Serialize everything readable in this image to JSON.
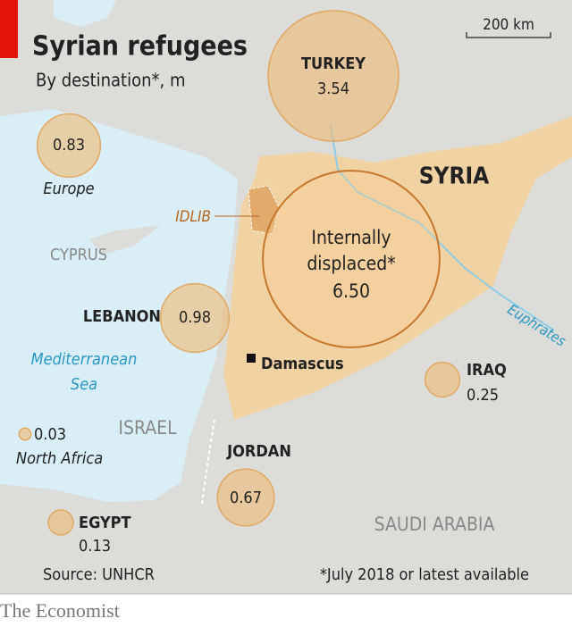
{
  "header": {
    "title": "Syrian refugees",
    "subtitle": "By destination*, m"
  },
  "scale_label": "200 km",
  "bubbles": [
    {
      "name": "TURKEY",
      "value": 3.54
    },
    {
      "name": [
        "Internally",
        "displaced*"
      ],
      "value": 6.5,
      "value_label": "6.50"
    },
    {
      "name": "Europe",
      "value": 0.83
    },
    {
      "name": "LEBANON",
      "value": 0.98
    },
    {
      "name": "IRAQ",
      "value": 0.25
    },
    {
      "name": "JORDAN",
      "value": 0.67
    },
    {
      "name": "EGYPT",
      "value": 0.13
    },
    {
      "name": "North Africa",
      "value": 0.03
    }
  ],
  "places": {
    "syria": "SYRIA",
    "idlib": "IDLIB",
    "cyprus": "CYPRUS",
    "sea": [
      "Mediterranean",
      "Sea"
    ],
    "israel": "ISRAEL",
    "damascus": "Damascus",
    "saudi": "SAUDI ARABIA",
    "river": "Euphrates"
  },
  "footer": {
    "source": "Source: UNHCR",
    "note": "*July 2018 or latest available",
    "brand": "The Economist"
  }
}
